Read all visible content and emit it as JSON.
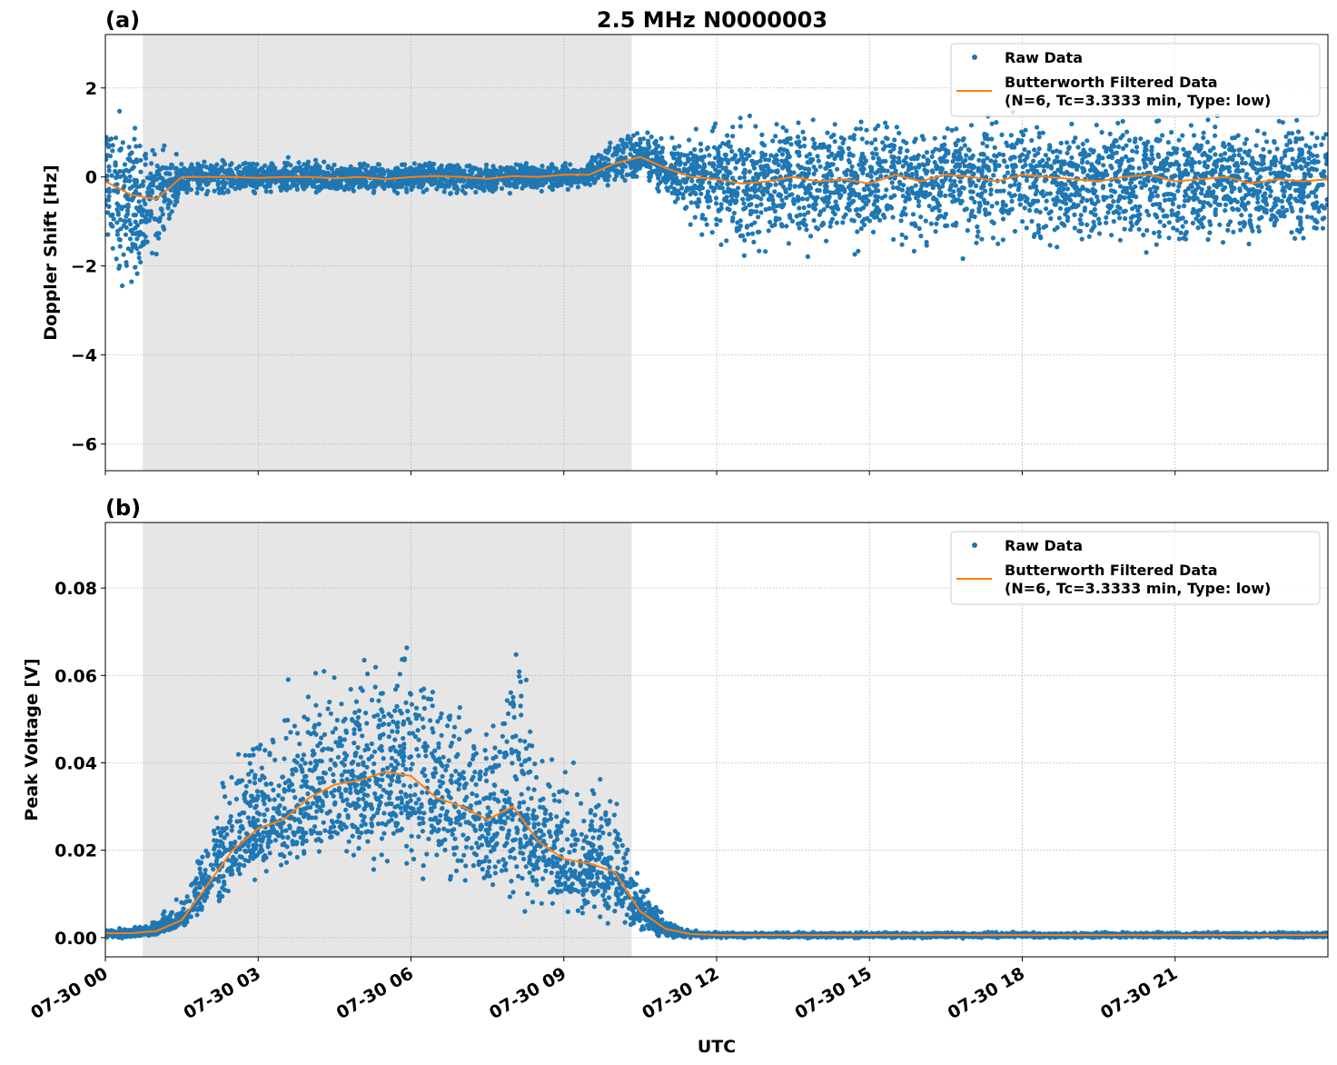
{
  "title": "2.5 MHz N0000003",
  "colors": {
    "raw": "#1f77b4",
    "filtered": "#ff7f0e",
    "shade": "#e6e6e6",
    "grid": "#b0b0b0"
  },
  "chart_data": [
    {
      "type": "scatter",
      "panel_label": "(a)",
      "ylabel": "Doppler Shift [Hz]",
      "xlabel": "",
      "xlim_hours": [
        0,
        24
      ],
      "ylim": [
        -6.6,
        3.2
      ],
      "yticks": [
        2,
        0,
        -2,
        -4,
        -6
      ],
      "ytick_labels": [
        "2",
        "0",
        "−2",
        "−4",
        "−6"
      ],
      "grid": true,
      "shaded_interval_utc": [
        "07-30 00:44",
        "07-30 10:20"
      ],
      "legend": {
        "placement": "top-right",
        "entries": [
          "Raw Data",
          "Butterworth Filtered Data",
          "(N=6, Tc=3.3333 min, Type: low)"
        ]
      },
      "x_hours": [
        0,
        0.5,
        1,
        1.5,
        2,
        2.5,
        3,
        3.5,
        4,
        4.5,
        5,
        5.5,
        6,
        6.5,
        7,
        7.5,
        8,
        8.5,
        9,
        9.5,
        10,
        10.5,
        11,
        11.5,
        12,
        12.5,
        13,
        13.5,
        14,
        14.5,
        15,
        15.5,
        16,
        16.5,
        17,
        17.5,
        18,
        18.5,
        19,
        19.5,
        20,
        20.5,
        21,
        21.5,
        22,
        22.5,
        23,
        23.5,
        24
      ],
      "series": [
        {
          "name": "Butterworth Filtered Data",
          "values": [
            -0.1,
            -0.4,
            -0.5,
            0,
            0,
            0,
            -0.02,
            0,
            0,
            -0.03,
            0,
            -0.05,
            0,
            0.02,
            0,
            -0.04,
            0.02,
            0,
            0.05,
            0.05,
            0.3,
            0.45,
            0.2,
            0,
            -0.05,
            -0.15,
            -0.1,
            0,
            -0.1,
            -0.05,
            -0.15,
            0.05,
            -0.1,
            0.05,
            0,
            -0.1,
            0.05,
            0,
            -0.05,
            -0.1,
            0,
            0.05,
            -0.1,
            -0.05,
            0,
            -0.15,
            -0.05,
            -0.1,
            -0.05
          ]
        },
        {
          "name": "Raw Data (lower envelope)",
          "values": [
            -1.6,
            -2.6,
            -2.2,
            -0.5,
            -0.4,
            -0.35,
            -0.35,
            -0.35,
            -0.35,
            -0.4,
            -0.35,
            -0.35,
            -0.35,
            -0.4,
            -0.4,
            -0.35,
            -0.35,
            -0.3,
            -0.3,
            -0.2,
            -0.1,
            0,
            -0.4,
            -1.1,
            -1.4,
            -1.6,
            -1.5,
            -1.5,
            -1.5,
            -1.5,
            -1.6,
            -1.5,
            -1.5,
            -1.5,
            -1.5,
            -1.5,
            -1.6,
            -1.5,
            -1.5,
            -1.5,
            -1.5,
            -1.5,
            -1.5,
            -1.5,
            -1.5,
            -1.6,
            -1.5,
            -1.5,
            -1.5
          ]
        },
        {
          "name": "Raw Data (upper envelope)",
          "values": [
            1.5,
            1.1,
            0.7,
            0.35,
            0.35,
            0.35,
            0.35,
            0.35,
            0.35,
            0.3,
            0.3,
            0.3,
            0.3,
            0.3,
            0.3,
            0.3,
            0.3,
            0.25,
            0.3,
            0.4,
            0.9,
            1.1,
            0.8,
            0.8,
            1.1,
            1.2,
            1.2,
            1.2,
            1.2,
            1.2,
            1.2,
            1.2,
            1.2,
            1.2,
            1.2,
            1.2,
            1.3,
            1.3,
            1.2,
            1.2,
            1.2,
            1.2,
            1.2,
            1.2,
            1.2,
            1.2,
            1.2,
            1.2,
            1.2
          ]
        }
      ]
    },
    {
      "type": "scatter",
      "panel_label": "(b)",
      "ylabel": "Peak Voltage [V]",
      "xlabel": "UTC",
      "xlim_hours": [
        0,
        24
      ],
      "ylim": [
        -0.0044,
        0.095
      ],
      "yticks": [
        0,
        0.02,
        0.04,
        0.06,
        0.08
      ],
      "ytick_labels": [
        "0.00",
        "0.02",
        "0.04",
        "0.06",
        "0.08"
      ],
      "xticks_hours": [
        0,
        3,
        6,
        9,
        12,
        15,
        18,
        21
      ],
      "xtick_labels": [
        "07-30 00",
        "07-30 03",
        "07-30 06",
        "07-30 09",
        "07-30 12",
        "07-30 15",
        "07-30 18",
        "07-30 21"
      ],
      "grid": true,
      "shaded_interval_utc": [
        "07-30 00:44",
        "07-30 10:20"
      ],
      "legend": {
        "placement": "top-right",
        "entries": [
          "Raw Data",
          "Butterworth Filtered Data",
          "(N=6, Tc=3.3333 min, Type: low)"
        ]
      },
      "x_hours": [
        0,
        0.5,
        1,
        1.5,
        2,
        2.5,
        3,
        3.5,
        4,
        4.5,
        5,
        5.5,
        6,
        6.5,
        7,
        7.5,
        8,
        8.5,
        9,
        9.5,
        10,
        10.5,
        11,
        11.5,
        12,
        12.5,
        13,
        13.5,
        14,
        14.5,
        15,
        15.5,
        16,
        16.5,
        17,
        17.5,
        18,
        18.5,
        19,
        19.5,
        20,
        20.5,
        21,
        21.5,
        22,
        22.5,
        23,
        23.5,
        24
      ],
      "series": [
        {
          "name": "Butterworth Filtered Data",
          "values": [
            0.001,
            0.001,
            0.0015,
            0.004,
            0.012,
            0.02,
            0.025,
            0.027,
            0.032,
            0.035,
            0.036,
            0.038,
            0.037,
            0.032,
            0.03,
            0.027,
            0.03,
            0.022,
            0.018,
            0.017,
            0.015,
            0.006,
            0.002,
            0.0008,
            0.0006,
            0.0006,
            0.0006,
            0.0006,
            0.0006,
            0.0006,
            0.0006,
            0.0006,
            0.0006,
            0.0006,
            0.0006,
            0.0006,
            0.0006,
            0.0006,
            0.0006,
            0.0006,
            0.0006,
            0.0006,
            0.0006,
            0.0006,
            0.0006,
            0.0006,
            0.0006,
            0.0006,
            0.0006
          ]
        },
        {
          "name": "Raw Data (lower envelope)",
          "values": [
            0,
            0,
            0.0005,
            0.002,
            0.006,
            0.011,
            0.014,
            0.015,
            0.016,
            0.017,
            0.016,
            0.016,
            0.016,
            0.013,
            0.012,
            0.011,
            0.01,
            0.009,
            0.006,
            0.005,
            0.005,
            0.002,
            0,
            0,
            0,
            0,
            0,
            0,
            0,
            0,
            0,
            0,
            0,
            0,
            0,
            0,
            0,
            0,
            0,
            0,
            0,
            0,
            0,
            0,
            0,
            0,
            0,
            0,
            0
          ]
        },
        {
          "name": "Raw Data (upper envelope)",
          "values": [
            0.002,
            0.002,
            0.004,
            0.009,
            0.025,
            0.04,
            0.048,
            0.052,
            0.056,
            0.062,
            0.063,
            0.068,
            0.065,
            0.056,
            0.052,
            0.048,
            0.07,
            0.042,
            0.038,
            0.035,
            0.032,
            0.014,
            0.004,
            0.0015,
            0.0012,
            0.0012,
            0.0012,
            0.0012,
            0.0012,
            0.0012,
            0.0012,
            0.0012,
            0.0012,
            0.0012,
            0.0012,
            0.0012,
            0.0012,
            0.0012,
            0.0012,
            0.0012,
            0.0012,
            0.0012,
            0.0012,
            0.0012,
            0.0012,
            0.0012,
            0.0012,
            0.0012,
            0.0012
          ]
        }
      ]
    }
  ]
}
